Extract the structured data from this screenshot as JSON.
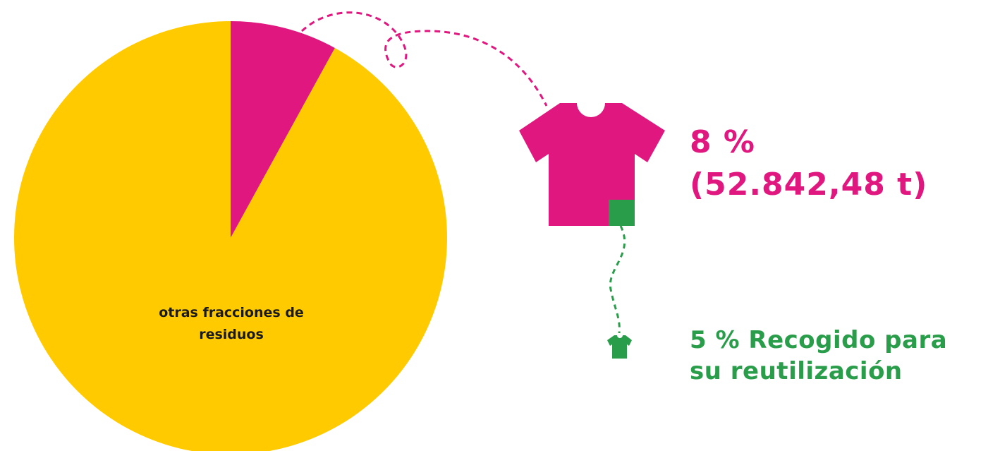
{
  "chart_data": {
    "type": "pie",
    "slices": [
      {
        "label": "otras fracciones de residuos",
        "value": 92,
        "color": "#ffcb00"
      },
      {
        "label": "8 % (52.842,48 t)",
        "value": 8,
        "color": "#e0177f"
      }
    ],
    "sub_value": {
      "label": "5 % Recogido para su reutilización",
      "value": 5,
      "color": "#2a9d4b"
    }
  },
  "labels": {
    "other": "otras fracciones de residuos",
    "textile_percent": "8 %",
    "textile_tonnes": "(52.842,48 t)",
    "reuse_line1": "5 % Recogido para",
    "reuse_line2": "su reutilización"
  },
  "icons": {
    "large": "t-shirt-icon",
    "small": "small-t-shirt-icon"
  },
  "colors": {
    "textile": "#e0177f",
    "other": "#ffcb00",
    "reuse": "#2a9d4b"
  }
}
